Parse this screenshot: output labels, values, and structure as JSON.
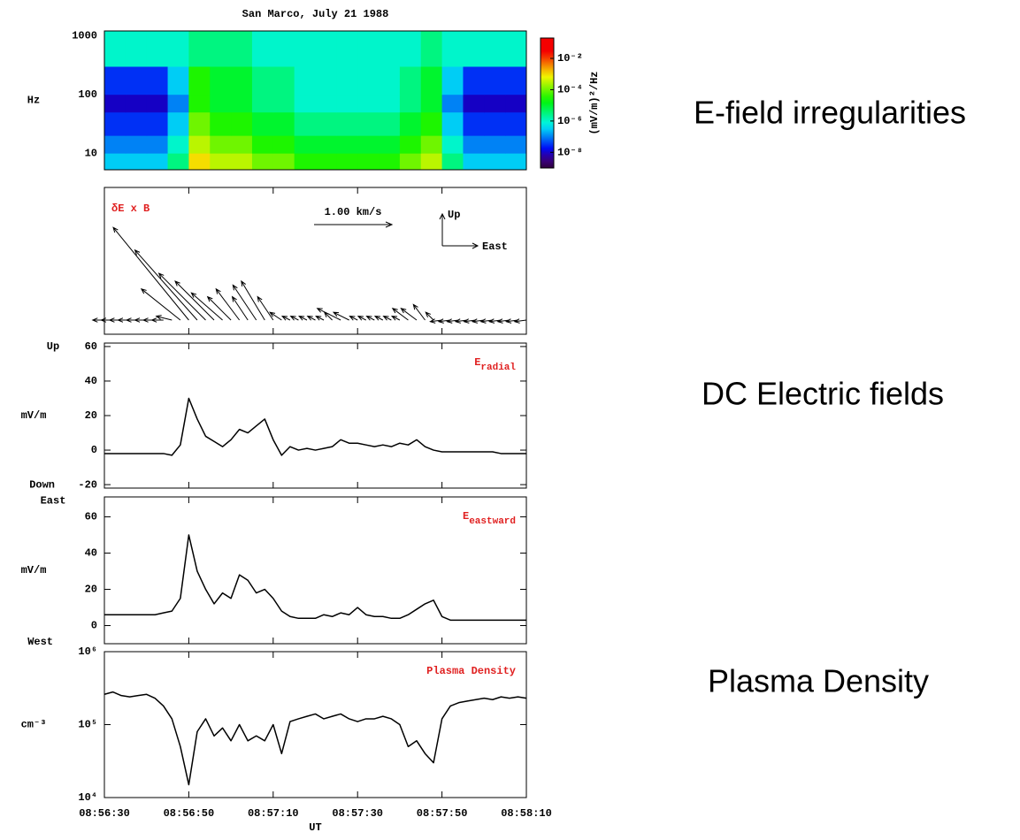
{
  "side_labels": [
    "E-field irregularities",
    "DC Electric fields",
    "Plasma Density"
  ],
  "chart_data": [
    {
      "type": "heatmap",
      "title": "San Marco,  July 21 1988",
      "y_label": "Hz",
      "log_y": true,
      "ylim": [
        5.2,
        1200
      ],
      "yticks": [
        10,
        100,
        1000
      ],
      "xlim": [
        "08:56:30",
        "08:58:10"
      ],
      "x_bins": [
        "08:56:30",
        "08:56:35",
        "08:56:40",
        "08:56:45",
        "08:56:50",
        "08:56:55",
        "08:57:00",
        "08:57:05",
        "08:57:10",
        "08:57:15",
        "08:57:20",
        "08:57:25",
        "08:57:30",
        "08:57:35",
        "08:57:40",
        "08:57:45",
        "08:57:50",
        "08:57:55",
        "08:58:00",
        "08:58:05",
        "08:58:10"
      ],
      "y_bins": [
        5.2,
        10,
        20,
        50,
        100,
        300,
        1200
      ],
      "z": [
        [
          3e-07,
          3e-07,
          3e-07,
          3e-06,
          0.001,
          0.0003,
          0.0003,
          0.0001,
          0.0001,
          3e-05,
          3e-05,
          3e-05,
          3e-05,
          3e-05,
          0.0001,
          0.0003,
          3e-06,
          3e-07,
          3e-07,
          3e-07
        ],
        [
          1e-07,
          1e-07,
          1e-07,
          1e-06,
          0.0003,
          0.0001,
          0.0001,
          3e-05,
          3e-05,
          1e-05,
          1e-05,
          1e-05,
          1e-05,
          1e-05,
          3e-05,
          0.0001,
          1e-06,
          1e-07,
          1e-07,
          1e-07
        ],
        [
          3e-08,
          3e-08,
          3e-08,
          3e-07,
          0.0001,
          3e-05,
          3e-05,
          1e-05,
          1e-05,
          3e-06,
          3e-06,
          3e-06,
          3e-06,
          3e-06,
          1e-05,
          3e-05,
          3e-07,
          3e-08,
          3e-08,
          3e-08
        ],
        [
          1e-08,
          1e-08,
          1e-08,
          1e-07,
          3e-05,
          1e-05,
          1e-05,
          3e-06,
          3e-06,
          1e-06,
          1e-06,
          1e-06,
          1e-06,
          1e-06,
          3e-06,
          1e-05,
          1e-07,
          1e-08,
          1e-08,
          1e-08
        ],
        [
          3e-08,
          3e-08,
          3e-08,
          3e-07,
          3e-05,
          1e-05,
          1e-05,
          3e-06,
          3e-06,
          1e-06,
          1e-06,
          1e-06,
          1e-06,
          1e-06,
          3e-06,
          1e-05,
          3e-07,
          3e-08,
          3e-08,
          3e-08
        ],
        [
          1e-06,
          1e-06,
          1e-06,
          1e-06,
          3e-06,
          3e-06,
          3e-06,
          1e-06,
          1e-06,
          1e-06,
          1e-06,
          1e-06,
          1e-06,
          1e-06,
          1e-06,
          3e-06,
          1e-06,
          1e-06,
          1e-06,
          1e-06
        ]
      ],
      "zlim": [
        1e-09,
        0.2
      ],
      "zticks": [
        {
          "value": 0.01,
          "label": "10⁻²"
        },
        {
          "value": 0.0001,
          "label": "10⁻⁴"
        },
        {
          "value": 1e-06,
          "label": "10⁻⁶"
        },
        {
          "value": 1e-08,
          "label": "10⁻⁸"
        }
      ],
      "colorbar_label": "(mV/m)²/Hz"
    },
    {
      "type": "vector",
      "annotation": "δE x B",
      "scale": 1,
      "scale_label": "1.00 km/s",
      "direction_labels": [
        "Up",
        "East"
      ],
      "xlim": [
        "08:56:30",
        "08:58:10"
      ],
      "x": [
        "08:56:30",
        "08:56:32",
        "08:56:34",
        "08:56:36",
        "08:56:38",
        "08:56:40",
        "08:56:42",
        "08:56:44",
        "08:56:46",
        "08:56:48",
        "08:56:50",
        "08:56:52",
        "08:56:54",
        "08:56:56",
        "08:56:58",
        "08:57:00",
        "08:57:02",
        "08:57:04",
        "08:57:06",
        "08:57:08",
        "08:57:10",
        "08:57:12",
        "08:57:14",
        "08:57:16",
        "08:57:18",
        "08:57:20",
        "08:57:22",
        "08:57:24",
        "08:57:26",
        "08:57:28",
        "08:57:30",
        "08:57:32",
        "08:57:34",
        "08:57:36",
        "08:57:38",
        "08:57:40",
        "08:57:42",
        "08:57:44",
        "08:57:46",
        "08:57:48",
        "08:57:50",
        "08:57:52",
        "08:57:54",
        "08:57:56",
        "08:57:58",
        "08:58:00",
        "08:58:02",
        "08:58:04",
        "08:58:06",
        "08:58:08",
        "08:58:10"
      ],
      "east": [
        -0.15,
        -0.15,
        -0.15,
        -0.15,
        -0.15,
        -0.15,
        -0.15,
        -0.15,
        -0.2,
        -0.5,
        -0.97,
        -0.8,
        -0.6,
        -0.5,
        -0.4,
        -0.3,
        -0.3,
        -0.2,
        -0.3,
        -0.3,
        -0.2,
        -0.15,
        -0.1,
        -0.1,
        -0.1,
        -0.1,
        -0.1,
        -0.1,
        -0.3,
        -0.2,
        -0.1,
        -0.1,
        -0.1,
        -0.1,
        -0.1,
        -0.1,
        -0.2,
        -0.2,
        -0.15,
        -0.1,
        -0.15,
        -0.15,
        -0.15,
        -0.15,
        -0.15,
        -0.15,
        -0.15,
        -0.15,
        -0.15,
        -0.15,
        -0.15
      ],
      "up": [
        0,
        0,
        0,
        0,
        0,
        0,
        0,
        0,
        0.05,
        0.4,
        1.19,
        0.9,
        0.6,
        0.5,
        0.35,
        0.3,
        0.4,
        0.3,
        0.45,
        0.5,
        0.3,
        0.1,
        0.05,
        0.05,
        0.05,
        0.05,
        0.05,
        0.1,
        0.15,
        0.1,
        0.05,
        0.05,
        0.05,
        0.05,
        0.05,
        0.05,
        0.15,
        0.15,
        0.2,
        0.1,
        -0.02,
        -0.02,
        -0.02,
        -0.02,
        -0.02,
        -0.02,
        -0.02,
        -0.02,
        -0.02,
        -0.02,
        -0.02
      ]
    },
    {
      "type": "line",
      "y_label": "mV/m",
      "top_label": "Up",
      "bottom_label": "Down",
      "annotation": {
        "main": "E",
        "sub": "radial"
      },
      "ylim": [
        -22,
        62
      ],
      "yticks": [
        -20,
        0,
        20,
        40,
        60
      ],
      "xlim": [
        "08:56:30",
        "08:58:10"
      ],
      "color": "#000000",
      "x": [
        "08:56:30",
        "08:56:32",
        "08:56:34",
        "08:56:36",
        "08:56:38",
        "08:56:40",
        "08:56:42",
        "08:56:44",
        "08:56:46",
        "08:56:48",
        "08:56:50",
        "08:56:52",
        "08:56:54",
        "08:56:56",
        "08:56:58",
        "08:57:00",
        "08:57:02",
        "08:57:04",
        "08:57:06",
        "08:57:08",
        "08:57:10",
        "08:57:12",
        "08:57:14",
        "08:57:16",
        "08:57:18",
        "08:57:20",
        "08:57:22",
        "08:57:24",
        "08:57:26",
        "08:57:28",
        "08:57:30",
        "08:57:32",
        "08:57:34",
        "08:57:36",
        "08:57:38",
        "08:57:40",
        "08:57:42",
        "08:57:44",
        "08:57:46",
        "08:57:48",
        "08:57:50",
        "08:57:52",
        "08:57:54",
        "08:57:56",
        "08:57:58",
        "08:58:00",
        "08:58:02",
        "08:58:04",
        "08:58:06",
        "08:58:08",
        "08:58:10"
      ],
      "values": [
        -2,
        -2,
        -2,
        -2,
        -2,
        -2,
        -2,
        -2,
        -3,
        3,
        30,
        18,
        8,
        5,
        2,
        6,
        12,
        10,
        14,
        18,
        6,
        -3,
        2,
        0,
        1,
        0,
        1,
        2,
        6,
        4,
        4,
        3,
        2,
        3,
        2,
        4,
        3,
        6,
        2,
        0,
        -1,
        -1,
        -1,
        -1,
        -1,
        -1,
        -1,
        -2,
        -2,
        -2,
        -2
      ]
    },
    {
      "type": "line",
      "y_label": "mV/m",
      "top_label": "East",
      "bottom_label": "West",
      "annotation": {
        "main": "E",
        "sub": "eastward"
      },
      "ylim": [
        -10,
        71
      ],
      "yticks": [
        0,
        20,
        40,
        60
      ],
      "xlim": [
        "08:56:30",
        "08:58:10"
      ],
      "color": "#000000",
      "x": [
        "08:56:30",
        "08:56:32",
        "08:56:34",
        "08:56:36",
        "08:56:38",
        "08:56:40",
        "08:56:42",
        "08:56:44",
        "08:56:46",
        "08:56:48",
        "08:56:50",
        "08:56:52",
        "08:56:54",
        "08:56:56",
        "08:56:58",
        "08:57:00",
        "08:57:02",
        "08:57:04",
        "08:57:06",
        "08:57:08",
        "08:57:10",
        "08:57:12",
        "08:57:14",
        "08:57:16",
        "08:57:18",
        "08:57:20",
        "08:57:22",
        "08:57:24",
        "08:57:26",
        "08:57:28",
        "08:57:30",
        "08:57:32",
        "08:57:34",
        "08:57:36",
        "08:57:38",
        "08:57:40",
        "08:57:42",
        "08:57:44",
        "08:57:46",
        "08:57:48",
        "08:57:50",
        "08:57:52",
        "08:57:54",
        "08:57:56",
        "08:57:58",
        "08:58:00",
        "08:58:02",
        "08:58:04",
        "08:58:06",
        "08:58:08",
        "08:58:10"
      ],
      "values": [
        6,
        6,
        6,
        6,
        6,
        6,
        6,
        7,
        8,
        15,
        50,
        30,
        20,
        12,
        18,
        15,
        28,
        25,
        18,
        20,
        15,
        8,
        5,
        4,
        4,
        4,
        6,
        5,
        7,
        6,
        10,
        6,
        5,
        5,
        4,
        4,
        6,
        9,
        12,
        14,
        5,
        3,
        3,
        3,
        3,
        3,
        3,
        3,
        3,
        3,
        3
      ]
    },
    {
      "type": "line",
      "y_label": "cm⁻³",
      "annotation": {
        "main": "Plasma Density"
      },
      "log_y": true,
      "x_label": "UT",
      "ylim": [
        10000,
        1000000
      ],
      "yticks": [
        {
          "value": 10000,
          "label": "10⁴"
        },
        {
          "value": 100000,
          "label": "10⁵"
        },
        {
          "value": 1000000,
          "label": "10⁶"
        }
      ],
      "xlim": [
        "08:56:30",
        "08:58:10"
      ],
      "xticks": [
        "08:56:30",
        "08:56:50",
        "08:57:10",
        "08:57:30",
        "08:57:50",
        "08:58:10"
      ],
      "color": "#000000",
      "x": [
        "08:56:30",
        "08:56:32",
        "08:56:34",
        "08:56:36",
        "08:56:38",
        "08:56:40",
        "08:56:42",
        "08:56:44",
        "08:56:46",
        "08:56:48",
        "08:56:50",
        "08:56:52",
        "08:56:54",
        "08:56:56",
        "08:56:58",
        "08:57:00",
        "08:57:02",
        "08:57:04",
        "08:57:06",
        "08:57:08",
        "08:57:10",
        "08:57:12",
        "08:57:14",
        "08:57:16",
        "08:57:18",
        "08:57:20",
        "08:57:22",
        "08:57:24",
        "08:57:26",
        "08:57:28",
        "08:57:30",
        "08:57:32",
        "08:57:34",
        "08:57:36",
        "08:57:38",
        "08:57:40",
        "08:57:42",
        "08:57:44",
        "08:57:46",
        "08:57:48",
        "08:57:50",
        "08:57:52",
        "08:57:54",
        "08:57:56",
        "08:57:58",
        "08:58:00",
        "08:58:02",
        "08:58:04",
        "08:58:06",
        "08:58:08",
        "08:58:10"
      ],
      "values": [
        260000,
        280000,
        250000,
        240000,
        250000,
        260000,
        230000,
        180000,
        120000,
        50000,
        15000,
        80000,
        120000,
        70000,
        90000,
        60000,
        100000,
        60000,
        70000,
        60000,
        100000,
        40000,
        110000,
        120000,
        130000,
        140000,
        120000,
        130000,
        140000,
        120000,
        110000,
        120000,
        120000,
        130000,
        120000,
        100000,
        50000,
        60000,
        40000,
        30000,
        120000,
        180000,
        200000,
        210000,
        220000,
        230000,
        220000,
        240000,
        230000,
        240000,
        230000
      ]
    }
  ]
}
